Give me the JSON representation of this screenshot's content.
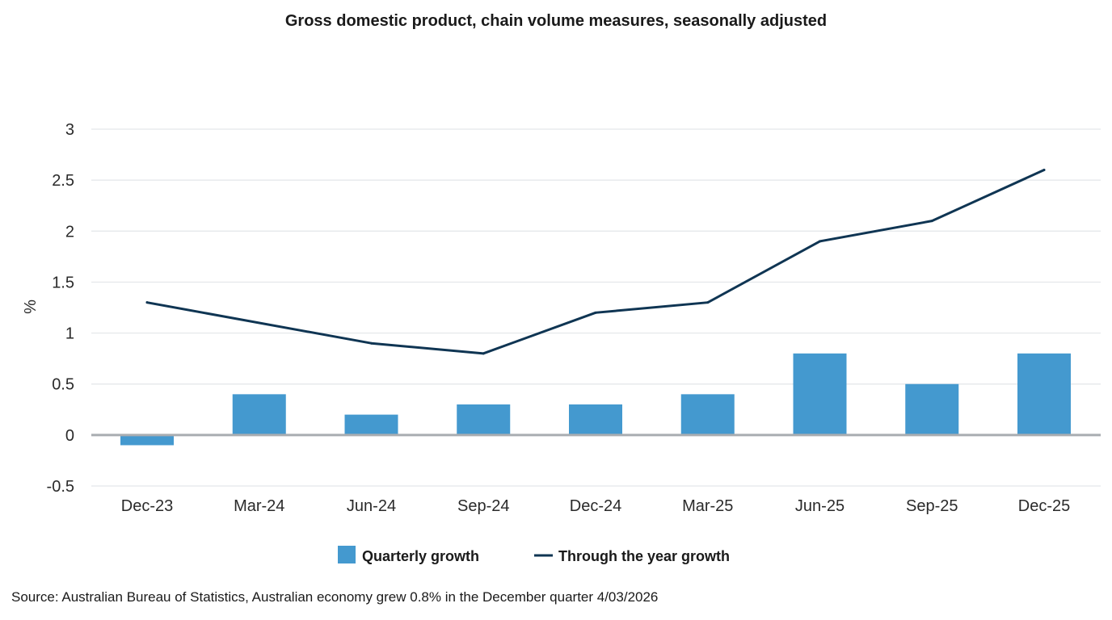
{
  "chart_data": {
    "type": "bar",
    "title": "Gross domestic product, chain volume measures, seasonally adjusted",
    "xlabel": "",
    "ylabel": "%",
    "ylim": [
      -0.5,
      3
    ],
    "yticks": [
      "3",
      "2.5",
      "2",
      "1.5",
      "1",
      "0.5",
      "0",
      "-0.5"
    ],
    "ytick_values": [
      3,
      2.5,
      2,
      1.5,
      1,
      0.5,
      0,
      -0.5
    ],
    "grid": true,
    "categories": [
      "Dec-23",
      "Mar-24",
      "Jun-24",
      "Sep-24",
      "Dec-24",
      "Mar-25",
      "Jun-25",
      "Sep-25",
      "Dec-25"
    ],
    "series": [
      {
        "name": "Quarterly growth",
        "kind": "bar",
        "color": "#4499CF",
        "values": [
          -0.1,
          0.4,
          0.2,
          0.3,
          0.3,
          0.4,
          0.8,
          0.5,
          0.8
        ]
      },
      {
        "name": "Through the year growth",
        "kind": "line",
        "color": "#0F3553",
        "values": [
          1.3,
          null,
          0.9,
          0.8,
          1.2,
          1.3,
          1.9,
          2.1,
          2.6
        ]
      }
    ],
    "legend_position": "bottom-center",
    "source": "Source: Australian Bureau of Statistics, Australian economy grew 0.8% in the December quarter 4/03/2026"
  },
  "colors": {
    "grid": "#E3E6E9",
    "zero_line": "#A9ADB1",
    "bar": "#4499CF",
    "line": "#0F3553"
  }
}
